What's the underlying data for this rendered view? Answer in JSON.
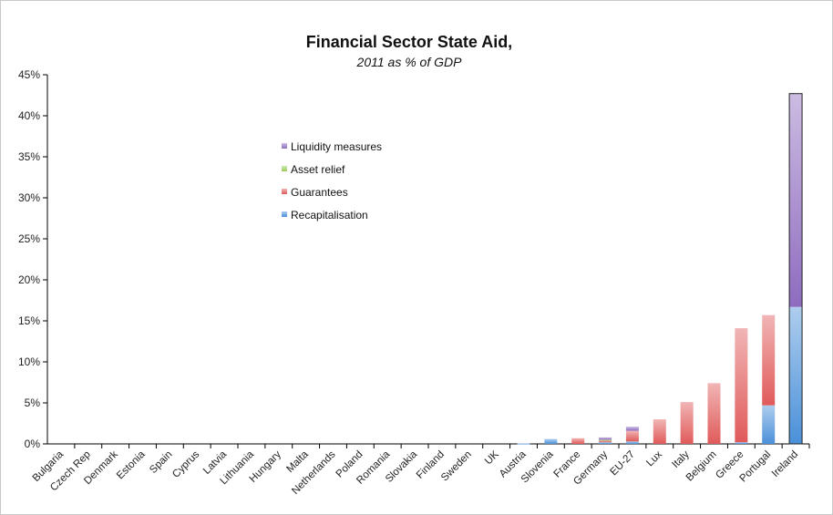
{
  "chart_data": {
    "type": "bar",
    "stacked": true,
    "title": "Financial Sector State Aid,",
    "subtitle": "2011 as % of GDP",
    "xlabel": "",
    "ylabel": "",
    "ylim": [
      0,
      45
    ],
    "yticks": [
      0,
      5,
      10,
      15,
      20,
      25,
      30,
      35,
      40,
      45
    ],
    "ytick_labels": [
      "0%",
      "5%",
      "10%",
      "15%",
      "20%",
      "25%",
      "30%",
      "35%",
      "40%",
      "45%"
    ],
    "categories": [
      "Bulgaria",
      "Czech Rep",
      "Denmark",
      "Estonia",
      "Spain",
      "Cyprus",
      "Latvia",
      "Lithuania",
      "Hungary",
      "Malta",
      "Netherlands",
      "Poland",
      "Romania",
      "Slovakia",
      "Finland",
      "Sweden",
      "UK",
      "Austria",
      "Slovenia",
      "France",
      "Germany",
      "EU-27",
      "Lux",
      "Italy",
      "Belgium",
      "Greece",
      "Portugal",
      "Ireland"
    ],
    "series": [
      {
        "name": "Recapitalisation",
        "color": "#4a90d9",
        "values": [
          0,
          0,
          0,
          0,
          0,
          0,
          0,
          0,
          0,
          0,
          0,
          0,
          0,
          0,
          0,
          0,
          0,
          0.05,
          0.6,
          0,
          0.2,
          0.3,
          0,
          0,
          0,
          0.2,
          4.7,
          16.7
        ]
      },
      {
        "name": "Guarantees",
        "color": "#e05a5a",
        "values": [
          0,
          0,
          0,
          0,
          0,
          0,
          0,
          0,
          0,
          0,
          0,
          0,
          0,
          0,
          0,
          0,
          0,
          0,
          0,
          0.7,
          0.2,
          1.3,
          3.0,
          5.1,
          7.4,
          13.9,
          11.0,
          0
        ]
      },
      {
        "name": "Asset relief",
        "color": "#9acd5a",
        "values": [
          0,
          0,
          0,
          0,
          0,
          0,
          0,
          0,
          0,
          0,
          0,
          0,
          0,
          0,
          0,
          0,
          0,
          0,
          0,
          0,
          0.1,
          0,
          0,
          0,
          0,
          0,
          0,
          0
        ]
      },
      {
        "name": "Liquidity measures",
        "color": "#8e6bbf",
        "values": [
          0,
          0,
          0,
          0,
          0,
          0,
          0,
          0,
          0,
          0,
          0,
          0,
          0,
          0,
          0,
          0,
          0,
          0,
          0,
          0,
          0.3,
          0.5,
          0,
          0,
          0,
          0,
          0,
          26.0
        ]
      }
    ],
    "legend": {
      "position": "upper-middle",
      "order": [
        "Liquidity measures",
        "Asset relief",
        "Guarantees",
        "Recapitalisation"
      ]
    },
    "grid": false
  }
}
